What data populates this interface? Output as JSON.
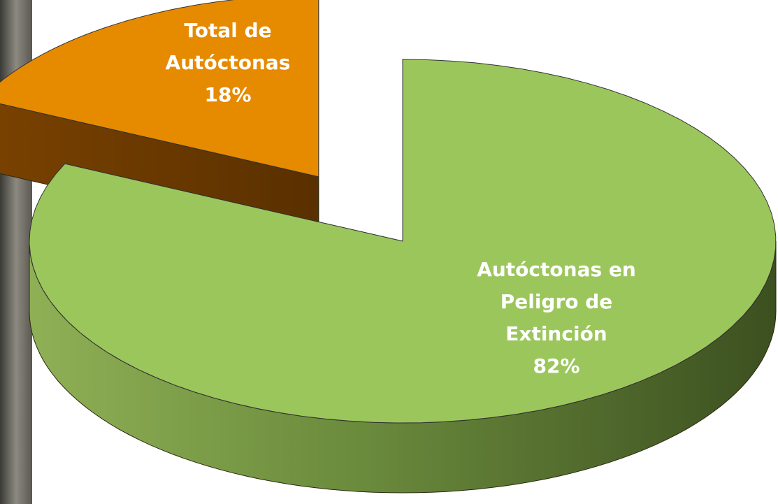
{
  "chart_data": {
    "type": "pie3d",
    "categories": [
      "Total de Autóctonas",
      "Autóctonas en Peligro de Extinción"
    ],
    "values": [
      18,
      82
    ],
    "value_labels": [
      "18%",
      "82%"
    ],
    "colors": [
      "#e68a00",
      "#9bc65c"
    ]
  }
}
